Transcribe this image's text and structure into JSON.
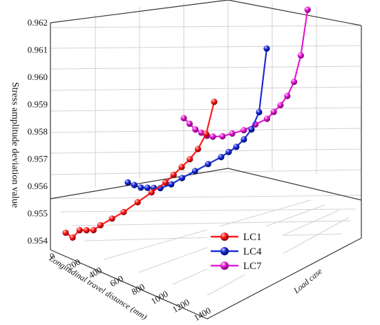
{
  "chart_data": {
    "type": "line",
    "style": "3d",
    "zlabel": "Stress amplitude deviation value",
    "xlabel": "Longitudinal travel distance (mm)",
    "ylabel": "Load case",
    "zlim": [
      0.9535,
      0.962
    ],
    "z_ticks": [
      "0.954",
      "0.955",
      "0.956",
      "0.957",
      "0.958",
      "0.959",
      "0.960",
      "0.961",
      "0.962"
    ],
    "z_tick_values": [
      0.954,
      0.955,
      0.956,
      0.957,
      0.958,
      0.959,
      0.96,
      0.961,
      0.962
    ],
    "x_ticks": [
      "0",
      "200",
      "400",
      "600",
      "800",
      "1000",
      "1200",
      "1400"
    ],
    "x_tick_values": [
      0,
      200,
      400,
      600,
      800,
      1000,
      1200,
      1400
    ],
    "legend_position": "bottom-right",
    "grid": true,
    "series": [
      {
        "name": "LC1",
        "color": "#ff1a1a",
        "points": [
          {
            "x": 0,
            "z": 0.9542
          },
          {
            "x": 60,
            "z": 0.9539
          },
          {
            "x": 120,
            "z": 0.9541
          },
          {
            "x": 180,
            "z": 0.954
          },
          {
            "x": 240,
            "z": 0.9539
          },
          {
            "x": 300,
            "z": 0.954
          },
          {
            "x": 400,
            "z": 0.9541
          },
          {
            "x": 500,
            "z": 0.9542
          },
          {
            "x": 620,
            "z": 0.9544
          },
          {
            "x": 740,
            "z": 0.9546
          },
          {
            "x": 860,
            "z": 0.9548
          },
          {
            "x": 930,
            "z": 0.955
          },
          {
            "x": 1000,
            "z": 0.9552
          },
          {
            "x": 1070,
            "z": 0.9554
          },
          {
            "x": 1140,
            "z": 0.9557
          },
          {
            "x": 1210,
            "z": 0.9562
          },
          {
            "x": 1280,
            "z": 0.9574
          }
        ]
      },
      {
        "name": "LC4",
        "color": "#1a2bd8",
        "points": [
          {
            "x": 0,
            "z": 0.9557
          },
          {
            "x": 60,
            "z": 0.9555
          },
          {
            "x": 120,
            "z": 0.9553
          },
          {
            "x": 180,
            "z": 0.9552
          },
          {
            "x": 240,
            "z": 0.9551
          },
          {
            "x": 300,
            "z": 0.955
          },
          {
            "x": 400,
            "z": 0.955
          },
          {
            "x": 500,
            "z": 0.9551
          },
          {
            "x": 620,
            "z": 0.9552
          },
          {
            "x": 740,
            "z": 0.9553
          },
          {
            "x": 860,
            "z": 0.9554
          },
          {
            "x": 930,
            "z": 0.9555
          },
          {
            "x": 1000,
            "z": 0.9556
          },
          {
            "x": 1070,
            "z": 0.9558
          },
          {
            "x": 1140,
            "z": 0.9561
          },
          {
            "x": 1210,
            "z": 0.9567
          },
          {
            "x": 1280,
            "z": 0.9592
          }
        ]
      },
      {
        "name": "LC7",
        "color": "#e51ad6",
        "points": [
          {
            "x": 0,
            "z": 0.958
          },
          {
            "x": 60,
            "z": 0.9577
          },
          {
            "x": 120,
            "z": 0.9574
          },
          {
            "x": 180,
            "z": 0.9572
          },
          {
            "x": 240,
            "z": 0.957
          },
          {
            "x": 300,
            "z": 0.9569
          },
          {
            "x": 400,
            "z": 0.9568
          },
          {
            "x": 500,
            "z": 0.9568
          },
          {
            "x": 620,
            "z": 0.9568
          },
          {
            "x": 740,
            "z": 0.9569
          },
          {
            "x": 860,
            "z": 0.957
          },
          {
            "x": 930,
            "z": 0.9572
          },
          {
            "x": 1000,
            "z": 0.9574
          },
          {
            "x": 1070,
            "z": 0.9577
          },
          {
            "x": 1140,
            "z": 0.9582
          },
          {
            "x": 1210,
            "z": 0.9592
          },
          {
            "x": 1280,
            "z": 0.961
          }
        ]
      }
    ]
  }
}
